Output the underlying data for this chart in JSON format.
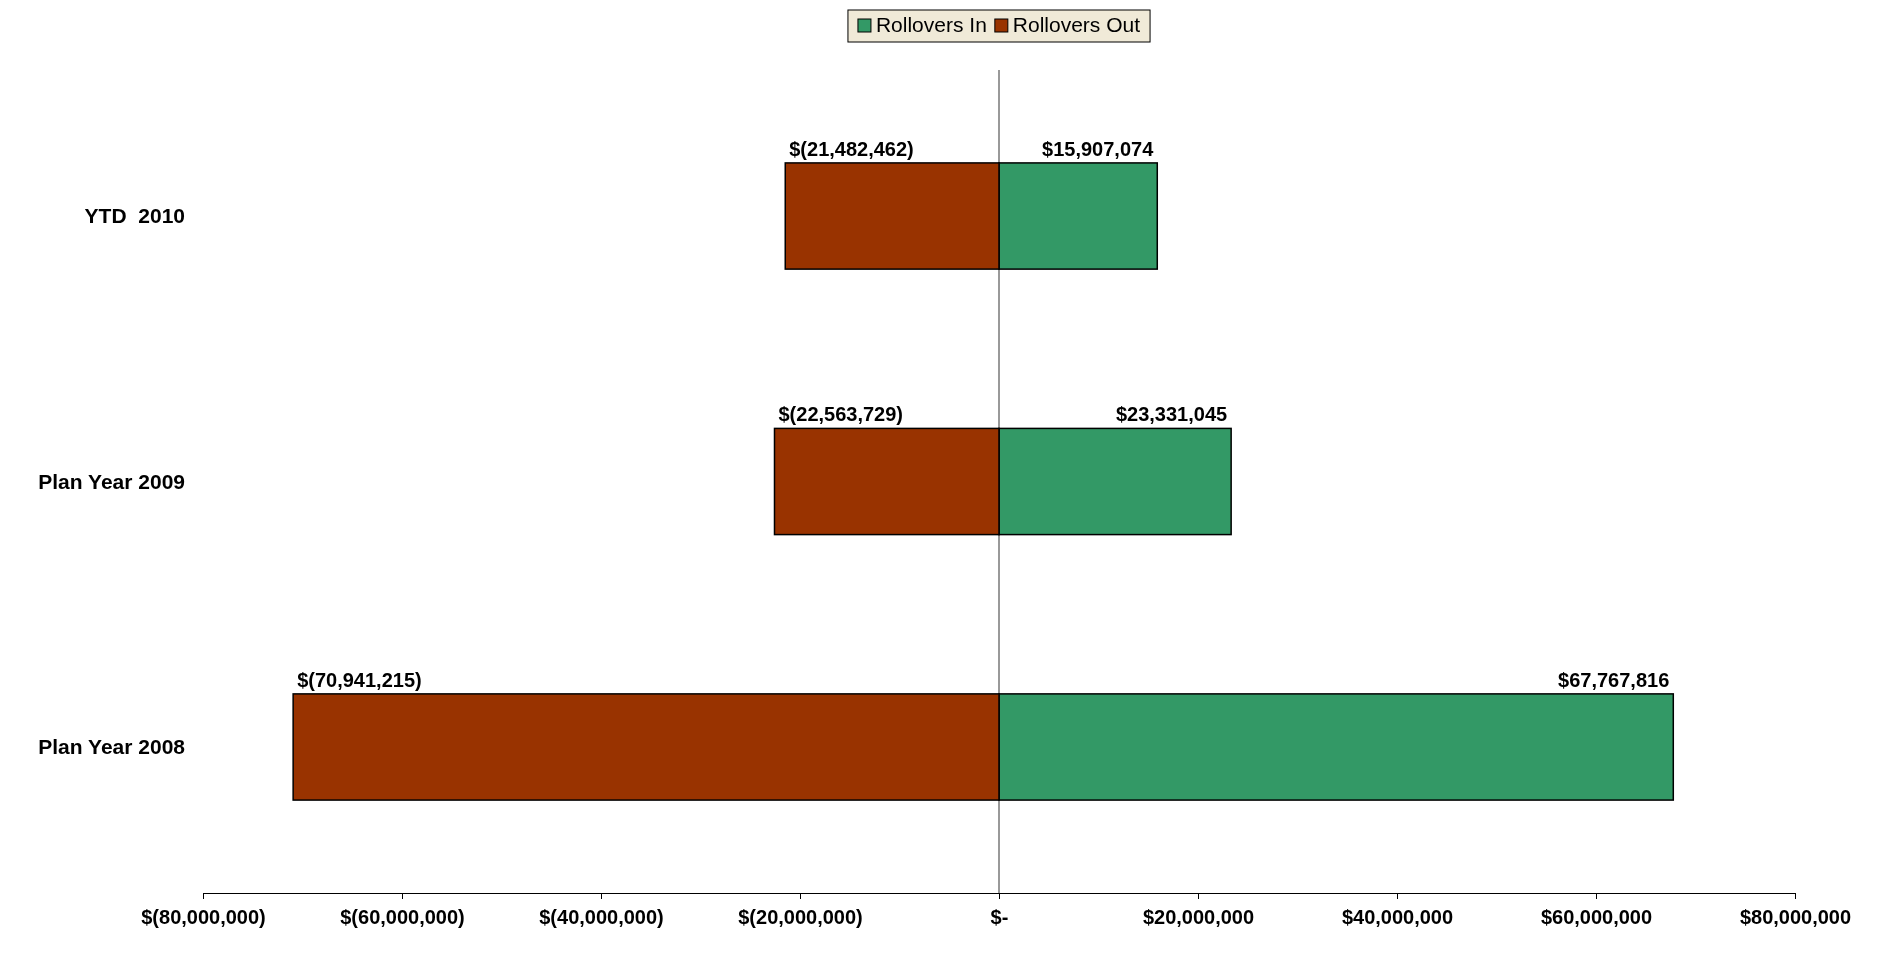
{
  "chart_data": {
    "type": "bar",
    "orientation": "horizontal",
    "stacked": true,
    "categories": [
      "YTD  2010",
      "Plan Year 2009",
      "Plan Year 2008"
    ],
    "series": [
      {
        "name": "Rollovers In",
        "color": "#339966",
        "values": [
          15907074,
          23331045,
          67767816
        ],
        "value_labels": [
          "$15,907,074",
          "$23,331,045",
          "$67,767,816"
        ]
      },
      {
        "name": "Rollovers Out",
        "color": "#993300",
        "values": [
          -21482462,
          -22563729,
          -70941215
        ],
        "value_labels": [
          "$(21,482,462)",
          "$(22,563,729)",
          "$(70,941,215)"
        ]
      }
    ],
    "xlim": [
      -80000000,
      80000000
    ],
    "xticks": [
      {
        "value": -80000000,
        "label": "$(80,000,000)"
      },
      {
        "value": -60000000,
        "label": "$(60,000,000)"
      },
      {
        "value": -40000000,
        "label": "$(40,000,000)"
      },
      {
        "value": -20000000,
        "label": "$(20,000,000)"
      },
      {
        "value": 0,
        "label": "$-"
      },
      {
        "value": 20000000,
        "label": "$20,000,000"
      },
      {
        "value": 40000000,
        "label": "$40,000,000"
      },
      {
        "value": 60000000,
        "label": "$60,000,000"
      },
      {
        "value": 80000000,
        "label": "$80,000,000"
      }
    ],
    "ref_lines": [
      {
        "axis": "x",
        "value": 0
      }
    ],
    "grid": false,
    "legend": "top"
  }
}
